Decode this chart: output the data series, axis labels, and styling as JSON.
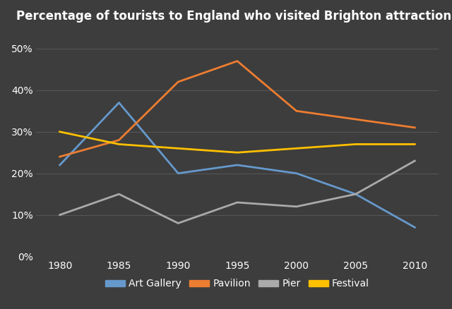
{
  "title": "Percentage of tourists to England who visited Brighton attractions",
  "years": [
    1980,
    1985,
    1990,
    1995,
    2000,
    2005,
    2010
  ],
  "series": {
    "Art Gallery": {
      "values": [
        22,
        37,
        20,
        22,
        20,
        15,
        7
      ],
      "color": "#6699CC",
      "marker": "o"
    },
    "Pavilion": {
      "values": [
        24,
        28,
        42,
        47,
        35,
        33,
        31
      ],
      "color": "#ED7D31",
      "marker": "o"
    },
    "Pier": {
      "values": [
        10,
        15,
        8,
        13,
        12,
        15,
        23
      ],
      "color": "#AAAAAA",
      "marker": "o"
    },
    "Festival": {
      "values": [
        30,
        27,
        26,
        25,
        26,
        27,
        27
      ],
      "color": "#FFC000",
      "marker": "o"
    }
  },
  "yticks": [
    0,
    10,
    20,
    30,
    40,
    50
  ],
  "ylim": [
    0,
    55
  ],
  "xlim": [
    1978,
    2012
  ],
  "background_color": "#3d3d3d",
  "grid_color": "#555555",
  "text_color": "#ffffff",
  "title_fontsize": 12,
  "tick_fontsize": 10,
  "legend_fontsize": 10,
  "line_width": 2.0
}
